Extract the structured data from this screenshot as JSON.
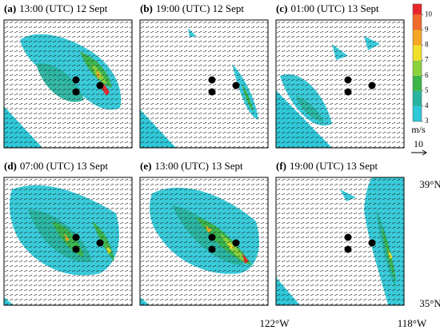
{
  "panels": [
    {
      "label": "(a)",
      "title": "13:00 (UTC) 12 Sept"
    },
    {
      "label": "(b)",
      "title": "19:00 (UTC) 12 Sept"
    },
    {
      "label": "(c)",
      "title": "01:00 (UTC) 13 Sept"
    },
    {
      "label": "(d)",
      "title": "07:00 (UTC) 13 Sept"
    },
    {
      "label": "(e)",
      "title": "13:00 (UTC) 13 Sept"
    },
    {
      "label": "(f)",
      "title": "19:00 (UTC) 13 Sept"
    }
  ],
  "colorbar": {
    "ticks": [
      3,
      4,
      5,
      6,
      7,
      8,
      9,
      10
    ],
    "lim": [
      3,
      10.7
    ],
    "colors": [
      "#2ec8d8",
      "#29b4a0",
      "#3cb44a",
      "#8cd23c",
      "#f0e02a",
      "#f5a623",
      "#ef6a2c",
      "#e8262a"
    ],
    "unit": "m/s"
  },
  "reference_vector": {
    "length": 10
  },
  "axis_labels": {
    "lat_top": "39°N",
    "lat_bottom": "35°N",
    "lon_left": "122°W",
    "lon_right": "118°W"
  }
}
